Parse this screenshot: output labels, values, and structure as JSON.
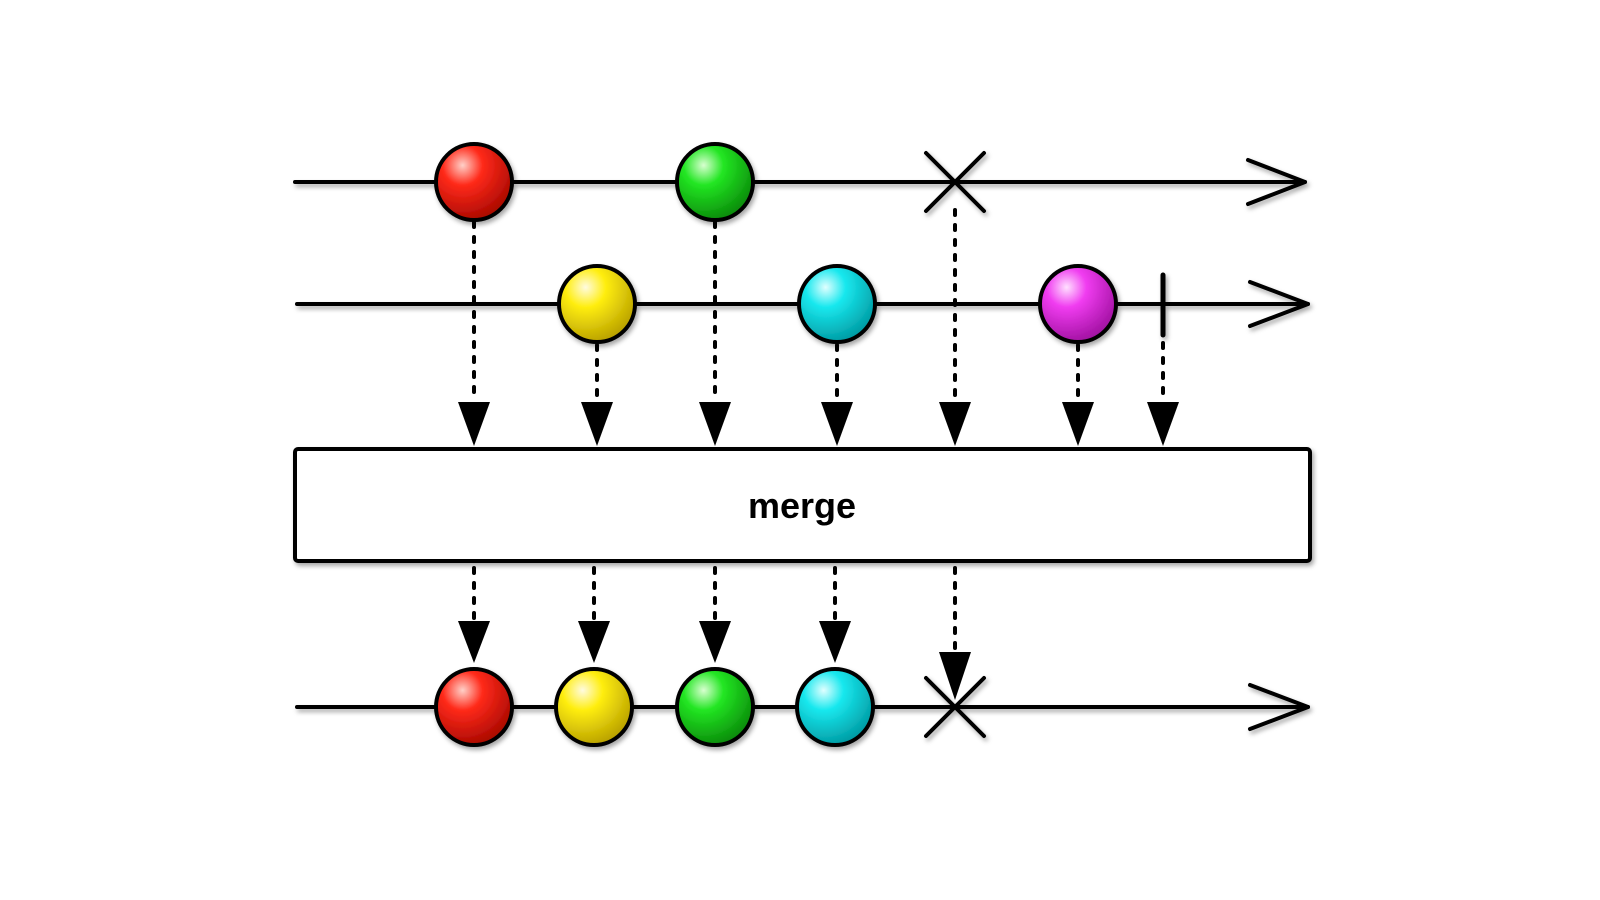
{
  "operator": {
    "label": "merge"
  },
  "colors": {
    "red": "#ff2a1a",
    "green": "#22e622",
    "yellow": "#ffee10",
    "cyan": "#18e8ee",
    "magenta": "#f03cf0",
    "line": "#000000",
    "background": "#ffffff"
  },
  "streams": [
    {
      "id": "input-1",
      "items": [
        {
          "color": "red"
        },
        {
          "color": "green"
        }
      ],
      "termination": "error"
    },
    {
      "id": "input-2",
      "items": [
        {
          "color": "yellow"
        },
        {
          "color": "cyan"
        },
        {
          "color": "magenta"
        }
      ],
      "termination": "complete"
    },
    {
      "id": "output",
      "items": [
        {
          "color": "red"
        },
        {
          "color": "yellow"
        },
        {
          "color": "green"
        },
        {
          "color": "cyan"
        }
      ],
      "termination": "error"
    }
  ]
}
